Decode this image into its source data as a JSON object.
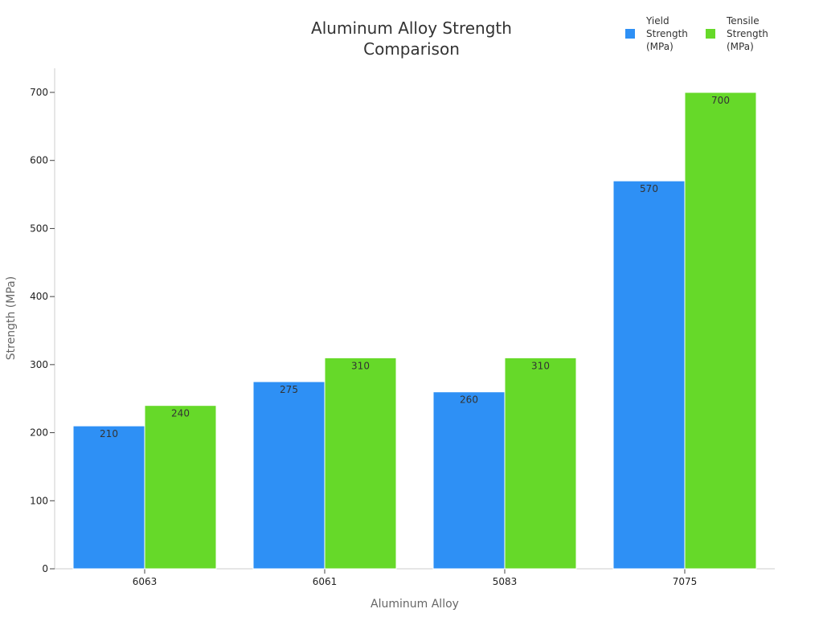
{
  "chart_data": {
    "type": "bar",
    "title": [
      "Aluminum Alloy Strength",
      "Comparison"
    ],
    "xlabel": "Aluminum Alloy",
    "ylabel": "Strength (MPa)",
    "categories": [
      "6063",
      "6061",
      "5083",
      "7075"
    ],
    "ylim": [
      0,
      700
    ],
    "yticks": [
      0,
      100,
      200,
      300,
      400,
      500,
      600,
      700
    ],
    "grid": false,
    "legend_position": "top-right",
    "series": [
      {
        "name": [
          "Yield",
          "Strength",
          "(MPa)"
        ],
        "color": "#2E90F5",
        "values": [
          210,
          275,
          260,
          570
        ]
      },
      {
        "name": [
          "Tensile",
          "Strength",
          "(MPa)"
        ],
        "color": "#66D929",
        "values": [
          240,
          310,
          310,
          700
        ]
      }
    ]
  }
}
